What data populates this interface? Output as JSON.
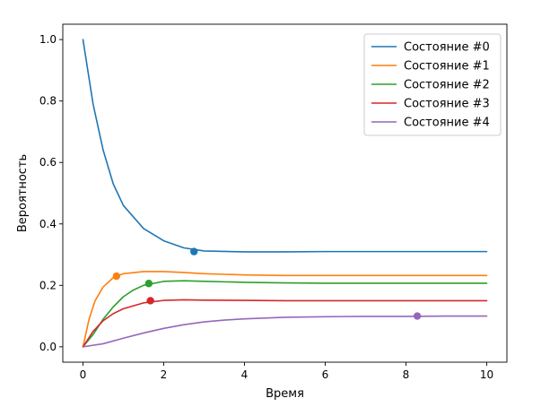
{
  "chart_data": {
    "type": "line",
    "title": "",
    "xlabel": "Время",
    "ylabel": "Вероятность",
    "xlim": [
      -0.5,
      10.5
    ],
    "ylim": [
      -0.05,
      1.05
    ],
    "xticks": [
      0,
      2,
      4,
      6,
      8,
      10
    ],
    "yticks": [
      0.0,
      0.2,
      0.4,
      0.6,
      0.8,
      1.0
    ],
    "xtick_labels": [
      "0",
      "2",
      "4",
      "6",
      "8",
      "10"
    ],
    "ytick_labels": [
      "0.0",
      "0.2",
      "0.4",
      "0.6",
      "0.8",
      "1.0"
    ],
    "grid": false,
    "legend_position": "top-right",
    "series": [
      {
        "name": "Состояние #0",
        "color": "#1f77b4",
        "x": [
          0,
          0.25,
          0.5,
          0.75,
          1.0,
          1.5,
          2.0,
          2.5,
          3.0,
          4.0,
          5.0,
          6.0,
          7.0,
          8.0,
          9.0,
          10.0
        ],
        "y": [
          1.0,
          0.79,
          0.64,
          0.53,
          0.46,
          0.385,
          0.345,
          0.322,
          0.312,
          0.309,
          0.309,
          0.31,
          0.31,
          0.31,
          0.31,
          0.31
        ],
        "marker": {
          "x": 2.75,
          "y": 0.31
        }
      },
      {
        "name": "Состояние #1",
        "color": "#ff7f0e",
        "x": [
          0,
          0.15,
          0.3,
          0.5,
          0.75,
          1.0,
          1.5,
          2.0,
          2.5,
          3.0,
          4.0,
          5.0,
          6.0,
          8.0,
          10.0
        ],
        "y": [
          0.0,
          0.09,
          0.15,
          0.195,
          0.225,
          0.238,
          0.245,
          0.245,
          0.242,
          0.238,
          0.234,
          0.232,
          0.232,
          0.232,
          0.232
        ],
        "marker": {
          "x": 0.83,
          "y": 0.23
        }
      },
      {
        "name": "Состояние #2",
        "color": "#2ca02c",
        "x": [
          0,
          0.25,
          0.5,
          0.75,
          1.0,
          1.25,
          1.5,
          2.0,
          2.5,
          3.0,
          4.0,
          5.0,
          6.0,
          8.0,
          10.0
        ],
        "y": [
          0.0,
          0.04,
          0.09,
          0.13,
          0.163,
          0.185,
          0.2,
          0.213,
          0.215,
          0.213,
          0.21,
          0.208,
          0.207,
          0.207,
          0.207
        ],
        "marker": {
          "x": 1.63,
          "y": 0.206
        }
      },
      {
        "name": "Состояние #3",
        "color": "#d62728",
        "x": [
          0,
          0.25,
          0.5,
          0.75,
          1.0,
          1.5,
          2.0,
          2.5,
          3.0,
          4.0,
          5.0,
          6.0,
          8.0,
          10.0
        ],
        "y": [
          0.0,
          0.05,
          0.085,
          0.108,
          0.124,
          0.143,
          0.151,
          0.153,
          0.152,
          0.151,
          0.15,
          0.15,
          0.15,
          0.15
        ],
        "marker": {
          "x": 1.67,
          "y": 0.15
        }
      },
      {
        "name": "Состояние #4",
        "color": "#9467bd",
        "x": [
          0,
          0.5,
          1.0,
          1.5,
          2.0,
          2.5,
          3.0,
          3.5,
          4.0,
          5.0,
          6.0,
          7.0,
          8.0,
          9.0,
          10.0
        ],
        "y": [
          0.0,
          0.01,
          0.028,
          0.045,
          0.06,
          0.072,
          0.081,
          0.087,
          0.091,
          0.096,
          0.098,
          0.099,
          0.099,
          0.1,
          0.1
        ],
        "marker": {
          "x": 8.28,
          "y": 0.1
        }
      }
    ]
  }
}
